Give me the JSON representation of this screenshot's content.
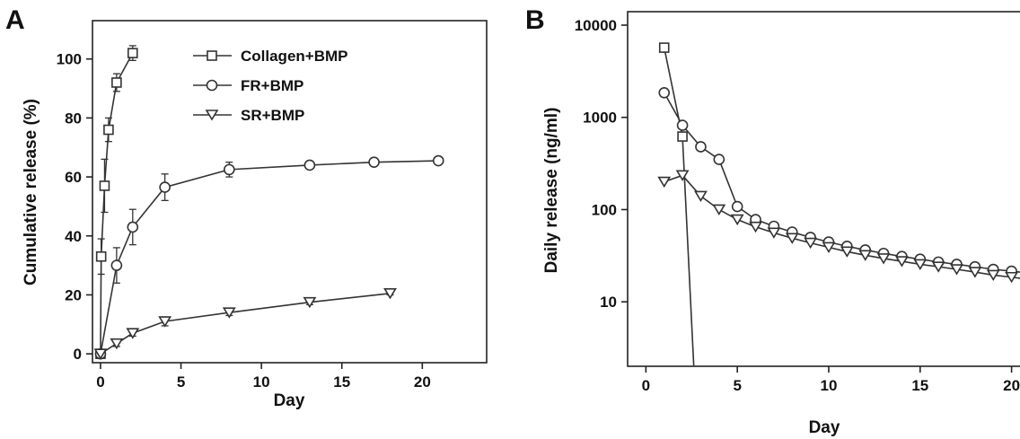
{
  "chart_data": [
    {
      "panel": "A",
      "type": "line",
      "xlabel": "Day",
      "ylabel": "Cumulative release (%)",
      "xlim": [
        -0.5,
        24
      ],
      "ylim": [
        -3,
        113
      ],
      "xticks": [
        0,
        5,
        10,
        15,
        20
      ],
      "yticks": [
        0,
        20,
        40,
        60,
        80,
        100
      ],
      "log_y": false,
      "grid": false,
      "legend_position": "top-right",
      "series": [
        {
          "name": "Collagen+BMP",
          "marker": "square",
          "x": [
            0,
            0.04,
            0.25,
            0.5,
            1,
            2
          ],
          "y": [
            0,
            33,
            57,
            76,
            92,
            102
          ],
          "err": [
            0,
            6,
            9,
            4,
            3,
            2.5
          ]
        },
        {
          "name": "FR+BMP",
          "marker": "circle",
          "x": [
            0,
            1,
            2,
            4,
            8,
            13,
            17,
            21
          ],
          "y": [
            0,
            30,
            43,
            56.5,
            62.5,
            64,
            65,
            65.5
          ],
          "err": [
            0,
            6,
            6,
            4.5,
            2.5,
            1,
            0.8,
            0.5
          ]
        },
        {
          "name": "SR+BMP",
          "marker": "triangle-down",
          "x": [
            0,
            1,
            2,
            4,
            8,
            13,
            18
          ],
          "y": [
            0,
            3.5,
            7,
            11,
            14,
            17.5,
            20.5
          ],
          "err": [
            0,
            1,
            1,
            1.5,
            1,
            0.8,
            0.5
          ]
        }
      ]
    },
    {
      "panel": "B",
      "type": "line",
      "xlabel": "Day",
      "ylabel": "Daily release (ng/ml)",
      "xlim": [
        -1,
        21.1
      ],
      "ylim": [
        2,
        14000
      ],
      "xticks": [
        0,
        5,
        10,
        15,
        20
      ],
      "yticks": [
        10,
        100,
        1000,
        10000
      ],
      "log_y": true,
      "grid": false,
      "legend_position": "none",
      "series": [
        {
          "marker": "square",
          "x": [
            1,
            2,
            2.65
          ],
          "y": [
            5700,
            620,
            1.5
          ],
          "marker_count": 2
        },
        {
          "marker": "circle",
          "x": [
            1,
            2,
            3,
            4,
            5,
            6,
            7,
            8,
            9,
            10,
            11,
            12,
            13,
            14,
            15,
            16,
            17,
            18,
            19,
            20,
            21
          ],
          "y": [
            1850,
            820,
            480,
            350,
            108,
            78,
            66,
            57,
            50,
            44.5,
            40,
            36.5,
            33.5,
            31,
            29,
            27,
            25.5,
            24,
            22.5,
            21.5,
            20.5
          ]
        },
        {
          "marker": "triangle-down",
          "x": [
            1,
            2,
            3,
            4,
            5,
            6,
            7,
            8,
            9,
            10,
            11,
            12,
            13,
            14,
            15,
            16,
            17,
            18,
            19,
            20,
            21
          ],
          "y": [
            200,
            235,
            140,
            100,
            78,
            65,
            56,
            49,
            43.5,
            39,
            35,
            32,
            29.5,
            27.5,
            25.5,
            24,
            22.5,
            21,
            19.5,
            18.5,
            17.5
          ]
        }
      ]
    }
  ]
}
